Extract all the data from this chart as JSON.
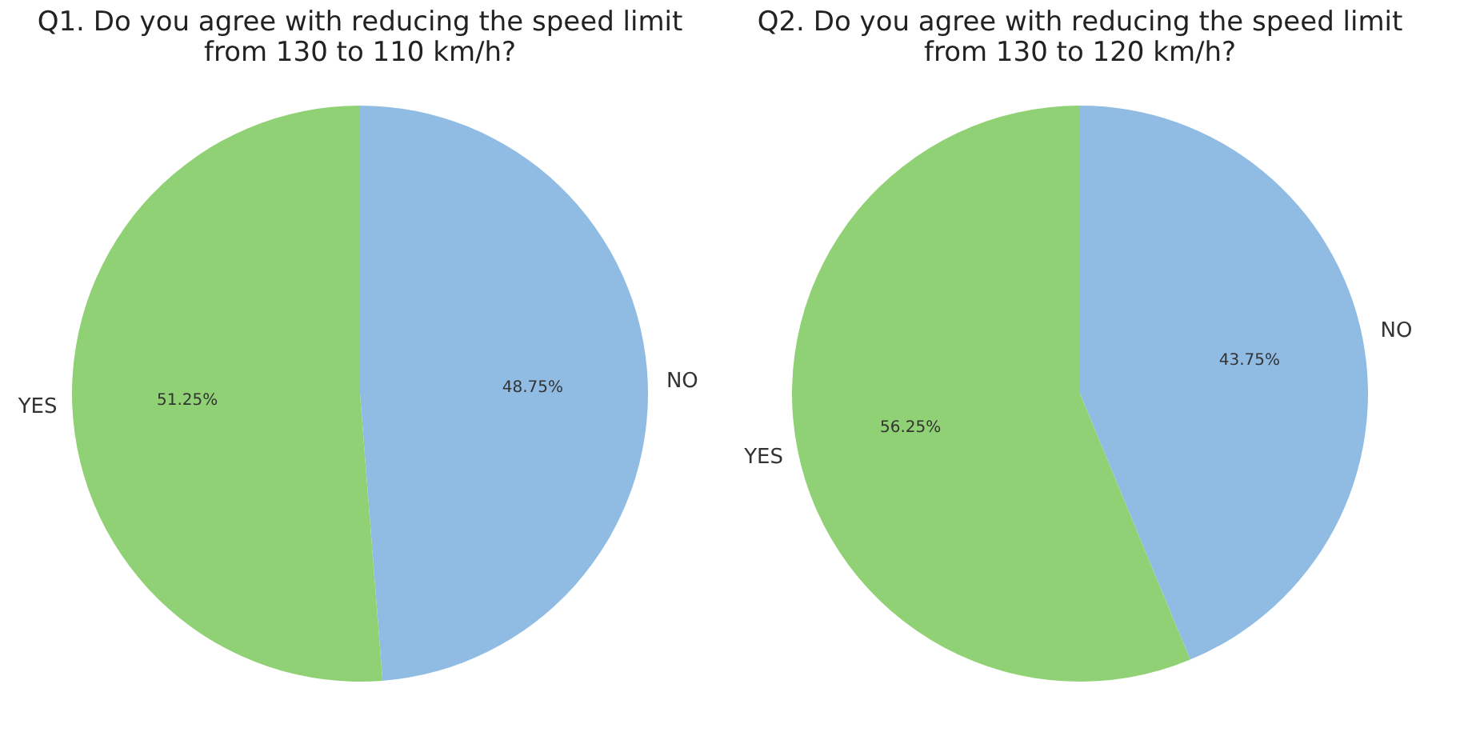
{
  "chart_data": [
    {
      "type": "pie",
      "title": "Q1. Do you agree with reducing the speed limit\nfrom 130 to 110 km/h?",
      "categories": [
        "NO",
        "YES"
      ],
      "values": [
        48.75,
        51.25
      ],
      "colors": [
        "#90bce4",
        "#8fd174"
      ],
      "value_labels": [
        "48.75%",
        "51.25%"
      ]
    },
    {
      "type": "pie",
      "title": "Q2. Do you agree with reducing the speed limit\nfrom 130 to 120 km/h?",
      "categories": [
        "NO",
        "YES"
      ],
      "values": [
        43.75,
        56.25
      ],
      "colors": [
        "#90bce4",
        "#8fd174"
      ],
      "value_labels": [
        "43.75%",
        "56.25%"
      ]
    }
  ]
}
